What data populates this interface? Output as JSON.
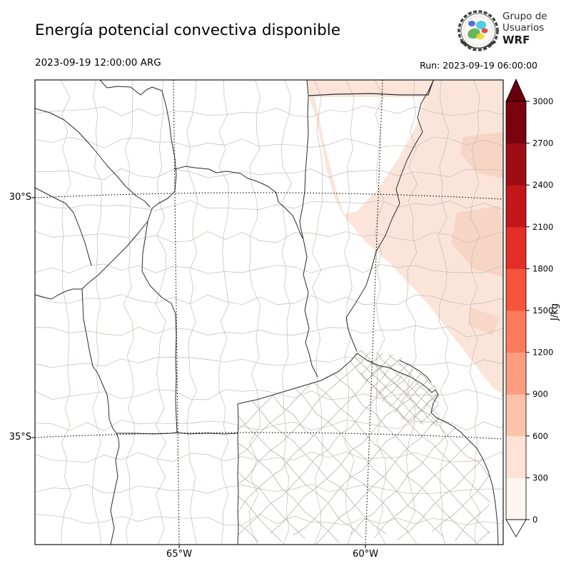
{
  "header": {
    "title": "Energía potencial convectiva disponible",
    "valid_time": "2023-09-19 12:00:00 ARG",
    "run_label": "Run: 2023-09-19 06:00:00",
    "logo": {
      "line1": "Grupo de",
      "line2": "Usuarios",
      "line3": "WRF"
    }
  },
  "map": {
    "lat_labels": [
      "30°S",
      "35°S"
    ],
    "lon_labels": [
      "65°W",
      "60°W"
    ],
    "shade_light": "#fbe5da",
    "shade_medium": "#f6d2c0",
    "border_color": "#2b2b2b",
    "department_line_color": "#c4bab4",
    "department_line_color_fine": "#b2a6a0",
    "department_line_color_dense": "#a29690"
  },
  "colorbar": {
    "unit": "J/kg",
    "ticks": [
      "3000",
      "2700",
      "2400",
      "2100",
      "1800",
      "1500",
      "1200",
      "900",
      "600",
      "300",
      "0"
    ],
    "colors": [
      "#fff5f0",
      "#fee3d6",
      "#fcc3ab",
      "#fc9d7f",
      "#fb7c5c",
      "#f5553c",
      "#e32f27",
      "#c2161b",
      "#9e0d14",
      "#7a030f"
    ],
    "over_color": "#67000d",
    "under_color": "#ffffff"
  },
  "chart_data": {
    "type": "heatmap",
    "title": "Energía potencial convectiva disponible",
    "units": "J/kg",
    "levels": [
      0,
      300,
      600,
      900,
      1200,
      1500,
      1800,
      2100,
      2400,
      2700,
      3000
    ],
    "lat_ticks": [
      "30°S",
      "35°S"
    ],
    "lon_ticks": [
      "65°W",
      "60°W"
    ],
    "shaded_region": "northeast sector of domain",
    "shaded_value_range": [
      0,
      600
    ]
  }
}
